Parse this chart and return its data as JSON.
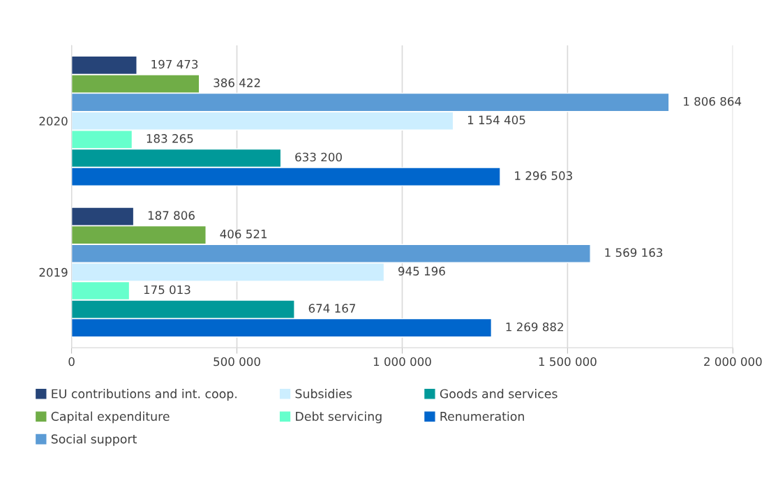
{
  "chart_data": {
    "type": "bar",
    "orientation": "horizontal",
    "categories": [
      "2020",
      "2019"
    ],
    "series": [
      {
        "name": "EU contributions and int. coop.",
        "color": "#264478",
        "values": [
          197473,
          187806
        ],
        "value_labels": [
          "197 473",
          "187 806"
        ]
      },
      {
        "name": "Capital expenditure",
        "color": "#70ad47",
        "values": [
          386422,
          406521
        ],
        "value_labels": [
          "386 422",
          "406 521"
        ]
      },
      {
        "name": "Social support",
        "color": "#5b9bd5",
        "values": [
          1806864,
          1569163
        ],
        "value_labels": [
          "1 806 864",
          "1 569 163"
        ]
      },
      {
        "name": "Subsidies",
        "color": "#cceeff",
        "values": [
          1154405,
          945196
        ],
        "value_labels": [
          "1 154 405",
          "945 196"
        ]
      },
      {
        "name": "Debt servicing",
        "color": "#66ffcc",
        "values": [
          183265,
          175013
        ],
        "value_labels": [
          "183 265",
          "175 013"
        ]
      },
      {
        "name": "Goods and services",
        "color": "#009999",
        "values": [
          633200,
          674167
        ],
        "value_labels": [
          "633 200",
          "674 167"
        ]
      },
      {
        "name": "Renumeration",
        "color": "#0066cc",
        "values": [
          1296503,
          1269882
        ],
        "value_labels": [
          "1 296 503",
          "1 269 882"
        ]
      }
    ],
    "xlim": [
      0,
      2000000
    ],
    "xticks": [
      0,
      {
        "value": 500000,
        "label": "500 000"
      },
      {
        "value": 1000000,
        "label": "1 000 000"
      },
      {
        "value": 1500000,
        "label": "1 500 000"
      },
      {
        "value": 2000000,
        "label": "2 000 000"
      }
    ],
    "grid": "x",
    "legend": "bottom"
  }
}
